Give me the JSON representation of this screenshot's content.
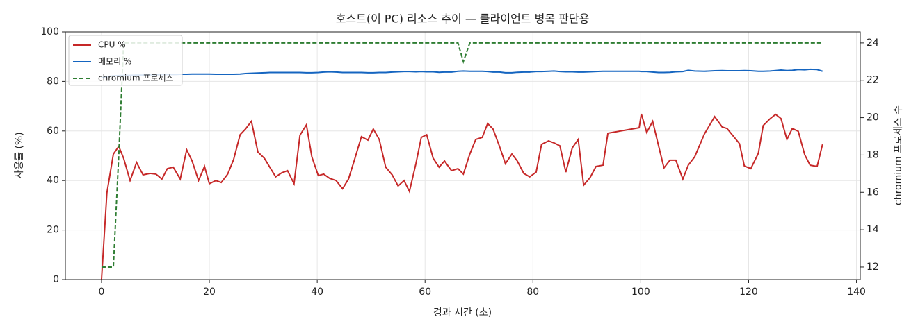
{
  "chart_data": {
    "type": "line",
    "title": "호스트(이 PC) 리소스 추이 — 클라이언트 병목 판단용",
    "x_label": "경과 시간 (초)",
    "y_label": "사용률 (%)",
    "y2_label": "chromium 프로세스 수",
    "xlim": [
      -6.7,
      140.7
    ],
    "xticks": [
      0,
      20,
      40,
      60,
      80,
      100,
      120,
      140
    ],
    "ylim": [
      0,
      100
    ],
    "yticks": [
      0,
      20,
      40,
      60,
      80,
      100
    ],
    "y2lim": [
      11.33,
      24.59
    ],
    "y2ticks": [
      12,
      14,
      16,
      18,
      20,
      22,
      24
    ],
    "grid": true,
    "legend": "upper left",
    "x": [
      0,
      1,
      2.2,
      3.2,
      4.1,
      5.3,
      6.5,
      7.7,
      9,
      10.1,
      11.2,
      12.2,
      13.3,
      14.6,
      15.8,
      16.8,
      18,
      19.1,
      20,
      21.2,
      22.2,
      23.4,
      24.5,
      25.7,
      26.7,
      27.8,
      29,
      30.2,
      31.2,
      32.3,
      33.4,
      34.5,
      35.7,
      36.8,
      38,
      39,
      40.2,
      41.2,
      42.3,
      43.5,
      44.7,
      45.8,
      47,
      48.2,
      49.4,
      50.4,
      51.5,
      52.7,
      53.9,
      55,
      56.1,
      57.1,
      58.3,
      59.3,
      60.3,
      61.5,
      62.6,
      63.6,
      64.9,
      66.1,
      67.1,
      68.3,
      69.4,
      70.6,
      71.6,
      72.6,
      73.8,
      74.9,
      76.1,
      77.1,
      78.3,
      79.4,
      80.6,
      81.6,
      82.9,
      83.9,
      85,
      86.1,
      87.3,
      88.4,
      89.4,
      90.6,
      91.7,
      93,
      93.9,
      99.7,
      100.1,
      101.1,
      102.2,
      103.3,
      104.3,
      105.4,
      106.5,
      107.8,
      108.8,
      110,
      111.8,
      113.7,
      115.1,
      116,
      118.3,
      119.2,
      120.4,
      121.8,
      122.7,
      124,
      125,
      126,
      127.1,
      128.1,
      129.2,
      130.4,
      131.4,
      132.7,
      133.7
    ],
    "series": [
      {
        "name": "CPU %",
        "color": "#c62828",
        "dash": false,
        "values": [
          0,
          35,
          50.7,
          53.8,
          49,
          40,
          47.3,
          42.3,
          42.9,
          42.6,
          40.6,
          44.8,
          45.4,
          40.6,
          52.4,
          47.9,
          40,
          45.7,
          38.7,
          40,
          39.2,
          42.6,
          48.5,
          58.5,
          60.8,
          63.9,
          51.5,
          49,
          45.4,
          41.5,
          43.1,
          44,
          38.7,
          58.3,
          62.5,
          49.6,
          42,
          42.6,
          40.9,
          40,
          36.7,
          40.6,
          49,
          57.7,
          56.3,
          60.8,
          56.6,
          45.4,
          42.3,
          37.8,
          40,
          35.6,
          46.8,
          57.4,
          58.5,
          49,
          45.4,
          47.9,
          44,
          44.8,
          42.6,
          50.7,
          56.6,
          57.4,
          63,
          60.8,
          53.8,
          46.8,
          50.7,
          47.9,
          42.9,
          41.5,
          43.4,
          54.6,
          56,
          55.2,
          54,
          43.4,
          53.2,
          56.6,
          38.1,
          41.2,
          45.7,
          46.2,
          59.1,
          61.3,
          66.9,
          59.4,
          63.9,
          54,
          45.1,
          48.2,
          48.2,
          40.6,
          46.2,
          49.6,
          58.8,
          65.8,
          61.6,
          61,
          54.9,
          45.9,
          44.8,
          51,
          62.2,
          65,
          66.7,
          65,
          56.6,
          61,
          59.9,
          50.4,
          46.2,
          45.7,
          54.6
        ]
      },
      {
        "name": "메모리 %",
        "color": "#1565c0",
        "dash": false,
        "values": [
          81.5,
          82.0,
          82.3,
          82.4,
          82.5,
          82.5,
          82.6,
          82.6,
          82.7,
          82.7,
          82.8,
          82.8,
          82.8,
          82.9,
          82.9,
          83.0,
          83.0,
          83.0,
          83.0,
          82.9,
          82.9,
          82.9,
          82.9,
          83.0,
          83.2,
          83.3,
          83.4,
          83.5,
          83.6,
          83.6,
          83.6,
          83.6,
          83.6,
          83.6,
          83.5,
          83.5,
          83.6,
          83.8,
          83.9,
          83.8,
          83.6,
          83.6,
          83.6,
          83.6,
          83.5,
          83.5,
          83.6,
          83.6,
          83.8,
          83.9,
          84.0,
          84.0,
          83.9,
          84.0,
          83.9,
          83.9,
          83.7,
          83.8,
          83.8,
          84.1,
          84.2,
          84.1,
          84.1,
          84.1,
          84.0,
          83.8,
          83.8,
          83.5,
          83.5,
          83.7,
          83.8,
          83.8,
          84.0,
          84.0,
          84.1,
          84.2,
          84.0,
          83.9,
          83.9,
          83.8,
          83.8,
          83.9,
          84.0,
          84.1,
          84.1,
          84.1,
          84.0,
          84.0,
          83.8,
          83.6,
          83.6,
          83.7,
          83.9,
          84.0,
          84.5,
          84.2,
          84.1,
          84.3,
          84.4,
          84.3,
          84.3,
          84.4,
          84.3,
          84.1,
          84.1,
          84.2,
          84.4,
          84.6,
          84.4,
          84.5,
          84.8,
          84.7,
          84.9,
          84.8,
          84.1
        ]
      },
      {
        "name": "chromium 프로세스",
        "color": "#2e7d32",
        "dash": true,
        "axis": "y2",
        "values": [
          12,
          12,
          12,
          18,
          24,
          24,
          24,
          24,
          24,
          24,
          24,
          24,
          24,
          24,
          24,
          24,
          24,
          24,
          24,
          24,
          24,
          24,
          24,
          24,
          24,
          24,
          24,
          24,
          24,
          24,
          24,
          24,
          24,
          24,
          24,
          24,
          24,
          24,
          24,
          24,
          24,
          24,
          24,
          24,
          24,
          24,
          24,
          24,
          24,
          24,
          24,
          24,
          24,
          24,
          24,
          24,
          24,
          24,
          24,
          24,
          23,
          24,
          24,
          24,
          24,
          24,
          24,
          24,
          24,
          24,
          24,
          24,
          24,
          24,
          24,
          24,
          24,
          24,
          24,
          24,
          24,
          24,
          24,
          24,
          24,
          24,
          24,
          24,
          24,
          24,
          24,
          24,
          24,
          24,
          24,
          24,
          24,
          24,
          24,
          24,
          24,
          24,
          24,
          24,
          24,
          24,
          24,
          24,
          24,
          24,
          24,
          24,
          24,
          24,
          24
        ]
      }
    ]
  }
}
